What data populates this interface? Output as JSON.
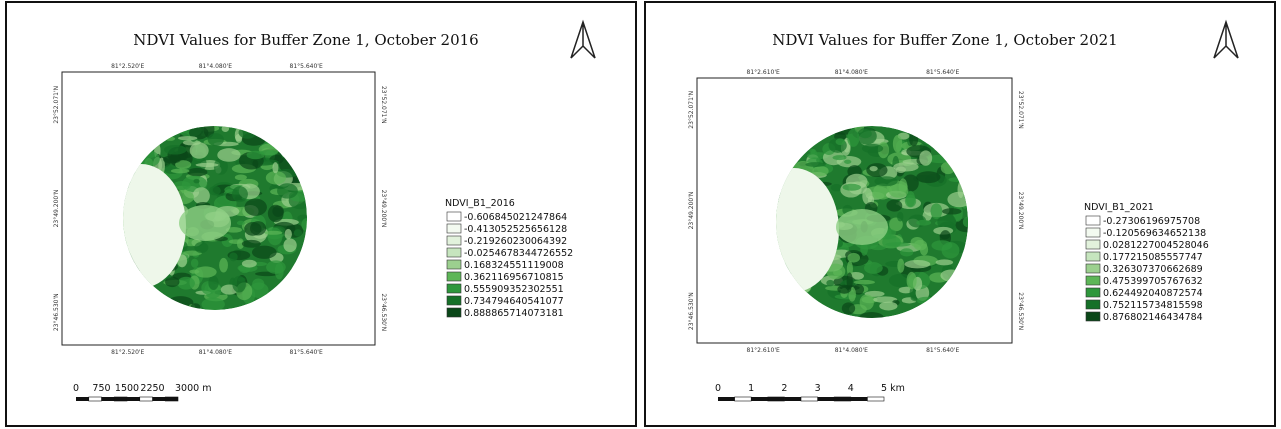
{
  "maps": [
    {
      "title": "NDVI Values for Buffer Zone 1, October 2016",
      "top_coords": [
        "81°2.520'E",
        "81°4.080'E",
        "81°5.640'E"
      ],
      "bottom_coords": [
        "81°2.520'E",
        "81°4.080'E",
        "81°5.640'E"
      ],
      "left_coords": [
        "23°52.071'N",
        "23°49.200'N",
        "23°46.530'N"
      ],
      "right_coords": [
        "23°52.071'N",
        "23°49.200'N",
        "23°46.530'N"
      ],
      "legend_title": "NDVI_B1_2016",
      "legend": [
        "-0.606845021247864",
        "-0.413052525656128",
        "-0.219260230064392",
        "-0.0254678344726552",
        "0.168324551119008",
        "0.362116956710815",
        "0.555909352302551",
        "0.734794640541077",
        "0.888865714073181"
      ],
      "scale_labels": [
        "0",
        "750",
        "1500",
        "2250",
        "3000 m"
      ]
    },
    {
      "title": "NDVI Values for Buffer Zone 1, October 2021",
      "top_coords": [
        "81°2.610'E",
        "81°4.080'E",
        "81°5.640'E"
      ],
      "bottom_coords": [
        "81°2.610'E",
        "81°4.080'E",
        "81°5.640'E"
      ],
      "left_coords": [
        "23°52.071'N",
        "23°49.200'N",
        "23°46.530'N"
      ],
      "right_coords": [
        "23°52.071'N",
        "23°49.200'N",
        "23°46.530'N"
      ],
      "legend_title": "NDVI_B1_2021",
      "legend": [
        "-0.27306196975708",
        "-0.120569634652138",
        "0.0281227004528046",
        "0.177215085557747",
        "0.326307370662689",
        "0.475399705767632",
        "0.624492040872574",
        "0.752115734815598",
        "0.876802146434784"
      ],
      "scale_labels": [
        "0",
        "1",
        "2",
        "3",
        "4",
        "5 km"
      ]
    }
  ]
}
